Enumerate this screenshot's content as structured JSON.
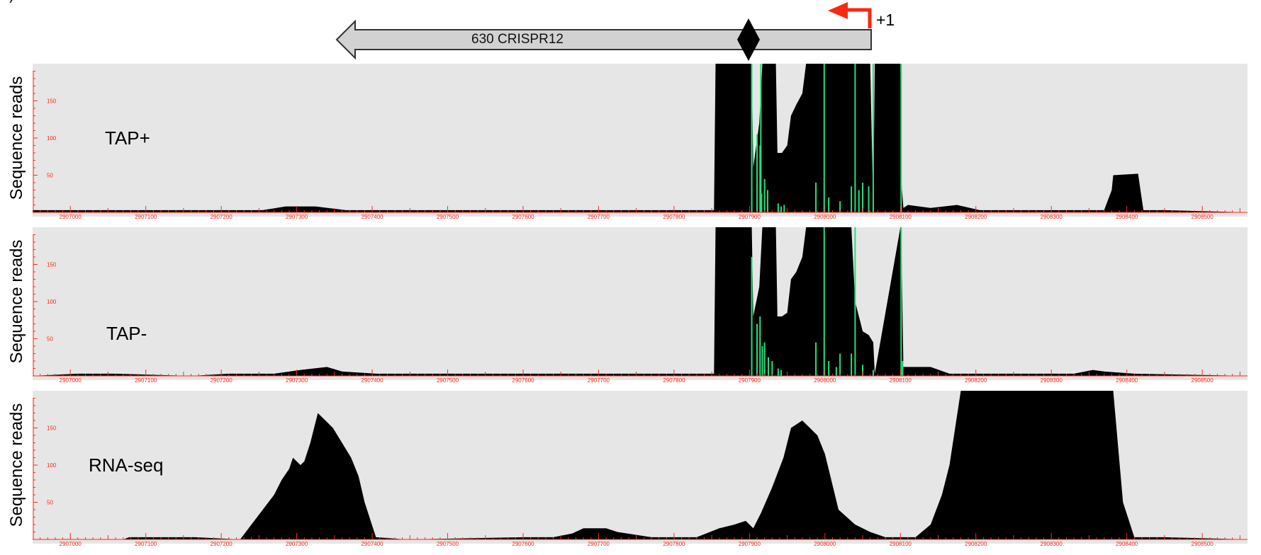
{
  "figure": {
    "panel_letter": "b)",
    "gene_label": "630 CRISPR12",
    "tss_label": "+1",
    "colors": {
      "background": "#e6e6e6",
      "reads": "#000000",
      "tss_marks": "#22e07a",
      "axis": "#ff2a1a",
      "gene_fill": "#d2d2d2",
      "gene_stroke": "#333333",
      "tss_arrow": "#f52a12"
    }
  },
  "chart_data": [
    {
      "type": "area",
      "title": "TAP+",
      "ylabel": "Sequence reads",
      "yticks": [
        50,
        100,
        150
      ],
      "ylim": [
        0,
        200
      ],
      "xlim": [
        2906950,
        2908560
      ],
      "xticks": [
        2907000,
        2907100,
        2907200,
        2907300,
        2907400,
        2907500,
        2907600,
        2907700,
        2907800,
        2907900,
        2908000,
        2908100,
        2908200,
        2908300,
        2908400,
        2908500
      ],
      "x": [
        2906950,
        2906975,
        2907255,
        2907285,
        2907325,
        2907365,
        2907395,
        2907440,
        2907610,
        2907800,
        2907853,
        2907855,
        2907893,
        2907903,
        2907905,
        2907913,
        2907917,
        2907922,
        2907930,
        2907935,
        2907937,
        2907943,
        2907950,
        2907955,
        2907962,
        2907970,
        2907975,
        2908000,
        2908050,
        2908060,
        2908064,
        2908066,
        2908100,
        2908101,
        2908104,
        2908110,
        2908140,
        2908175,
        2908205,
        2908238,
        2908325,
        2908370,
        2908380,
        2908382,
        2908415,
        2908422,
        2908450,
        2908560
      ],
      "values": [
        3,
        3,
        3,
        8,
        8,
        3,
        3,
        3,
        3,
        3,
        3,
        200,
        200,
        200,
        60,
        120,
        200,
        200,
        200,
        200,
        80,
        80,
        90,
        130,
        145,
        160,
        200,
        200,
        200,
        200,
        3,
        200,
        200,
        45,
        6,
        10,
        6,
        10,
        3,
        3,
        3,
        3,
        30,
        50,
        52,
        3,
        3,
        0
      ],
      "green_marks": [
        {
          "x": 2907903,
          "y": 200
        },
        {
          "x": 2907915,
          "y": 200
        },
        {
          "x": 2907910,
          "y": 105
        },
        {
          "x": 2907914,
          "y": 90
        },
        {
          "x": 2907916,
          "y": 25
        },
        {
          "x": 2907920,
          "y": 45
        },
        {
          "x": 2907924,
          "y": 30
        },
        {
          "x": 2907938,
          "y": 12
        },
        {
          "x": 2907942,
          "y": 8
        },
        {
          "x": 2907946,
          "y": 10
        },
        {
          "x": 2907988,
          "y": 40
        },
        {
          "x": 2907999,
          "y": 200
        },
        {
          "x": 2908005,
          "y": 20
        },
        {
          "x": 2908020,
          "y": 15
        },
        {
          "x": 2908035,
          "y": 35
        },
        {
          "x": 2908040,
          "y": 200
        },
        {
          "x": 2908045,
          "y": 30
        },
        {
          "x": 2908050,
          "y": 40
        },
        {
          "x": 2908058,
          "y": 35
        },
        {
          "x": 2908064,
          "y": 200
        },
        {
          "x": 2908101,
          "y": 200
        }
      ]
    },
    {
      "type": "area",
      "title": "TAP-",
      "ylabel": "Sequence reads",
      "yticks": [
        50,
        100,
        150
      ],
      "ylim": [
        0,
        200
      ],
      "xlim": [
        2906950,
        2908560
      ],
      "xticks": [
        2907000,
        2907100,
        2907200,
        2907300,
        2907400,
        2907500,
        2907600,
        2907700,
        2907800,
        2907900,
        2908000,
        2908100,
        2908200,
        2908300,
        2908400,
        2908500
      ],
      "x": [
        2906950,
        2907010,
        2907060,
        2907160,
        2907210,
        2907270,
        2907305,
        2907340,
        2907360,
        2907405,
        2907500,
        2907740,
        2907800,
        2907853,
        2907855,
        2907893,
        2907903,
        2907905,
        2907913,
        2907917,
        2907930,
        2907935,
        2907937,
        2907943,
        2907950,
        2907955,
        2907962,
        2907970,
        2907975,
        2908000,
        2908035,
        2908040,
        2908050,
        2908058,
        2908064,
        2908066,
        2908100,
        2908101,
        2908104,
        2908140,
        2908165,
        2908200,
        2908275,
        2908330,
        2908355,
        2908370,
        2908410,
        2908560
      ],
      "values": [
        0,
        3,
        3,
        0,
        3,
        3,
        8,
        12,
        6,
        3,
        3,
        3,
        3,
        3,
        200,
        200,
        200,
        80,
        120,
        200,
        200,
        200,
        80,
        80,
        85,
        130,
        140,
        160,
        200,
        200,
        200,
        100,
        60,
        55,
        45,
        3,
        200,
        200,
        12,
        12,
        3,
        3,
        3,
        3,
        8,
        6,
        3,
        0
      ],
      "green_marks": [
        {
          "x": 2907903,
          "y": 160
        },
        {
          "x": 2907910,
          "y": 70
        },
        {
          "x": 2907914,
          "y": 80
        },
        {
          "x": 2907917,
          "y": 40
        },
        {
          "x": 2907920,
          "y": 45
        },
        {
          "x": 2907925,
          "y": 25
        },
        {
          "x": 2907930,
          "y": 20
        },
        {
          "x": 2907938,
          "y": 10
        },
        {
          "x": 2907942,
          "y": 8
        },
        {
          "x": 2907988,
          "y": 45
        },
        {
          "x": 2907999,
          "y": 200
        },
        {
          "x": 2908005,
          "y": 20
        },
        {
          "x": 2908015,
          "y": 12
        },
        {
          "x": 2908020,
          "y": 30
        },
        {
          "x": 2908035,
          "y": 30
        },
        {
          "x": 2908040,
          "y": 200
        },
        {
          "x": 2908050,
          "y": 15
        },
        {
          "x": 2908064,
          "y": 8
        },
        {
          "x": 2908101,
          "y": 200
        },
        {
          "x": 2908103,
          "y": 20
        }
      ]
    },
    {
      "type": "area",
      "title": "RNA-seq",
      "ylabel": "Sequence reads",
      "yticks": [
        50,
        100,
        150
      ],
      "ylim": [
        0,
        200
      ],
      "xlim": [
        2906950,
        2908560
      ],
      "xticks": [
        2907000,
        2907100,
        2907200,
        2907300,
        2907400,
        2907500,
        2907600,
        2907700,
        2907800,
        2907900,
        2908000,
        2908100,
        2908200,
        2908300,
        2908400,
        2908500
      ],
      "x": [
        2906950,
        2907070,
        2907078,
        2907165,
        2907225,
        2907240,
        2907255,
        2907270,
        2907280,
        2907290,
        2907295,
        2907305,
        2907310,
        2907318,
        2907328,
        2907338,
        2907348,
        2907360,
        2907372,
        2907382,
        2907390,
        2907405,
        2907445,
        2907600,
        2907640,
        2907665,
        2907680,
        2907710,
        2907725,
        2907770,
        2907800,
        2907830,
        2907860,
        2907880,
        2907895,
        2907900,
        2907905,
        2907915,
        2907930,
        2907945,
        2907955,
        2907970,
        2907990,
        2908000,
        2908018,
        2908040,
        2908060,
        2908080,
        2908100,
        2908120,
        2908140,
        2908155,
        2908165,
        2908180,
        2908340,
        2908382,
        2908395,
        2908410,
        2908450,
        2908560
      ],
      "values": [
        0,
        0,
        3,
        3,
        0,
        20,
        40,
        60,
        80,
        95,
        110,
        100,
        105,
        130,
        170,
        160,
        150,
        130,
        110,
        85,
        50,
        3,
        0,
        3,
        3,
        8,
        15,
        15,
        10,
        3,
        3,
        3,
        15,
        20,
        25,
        20,
        15,
        35,
        70,
        110,
        150,
        160,
        140,
        115,
        40,
        20,
        10,
        3,
        3,
        3,
        20,
        60,
        100,
        200,
        200,
        200,
        50,
        3,
        3,
        0
      ]
    }
  ]
}
